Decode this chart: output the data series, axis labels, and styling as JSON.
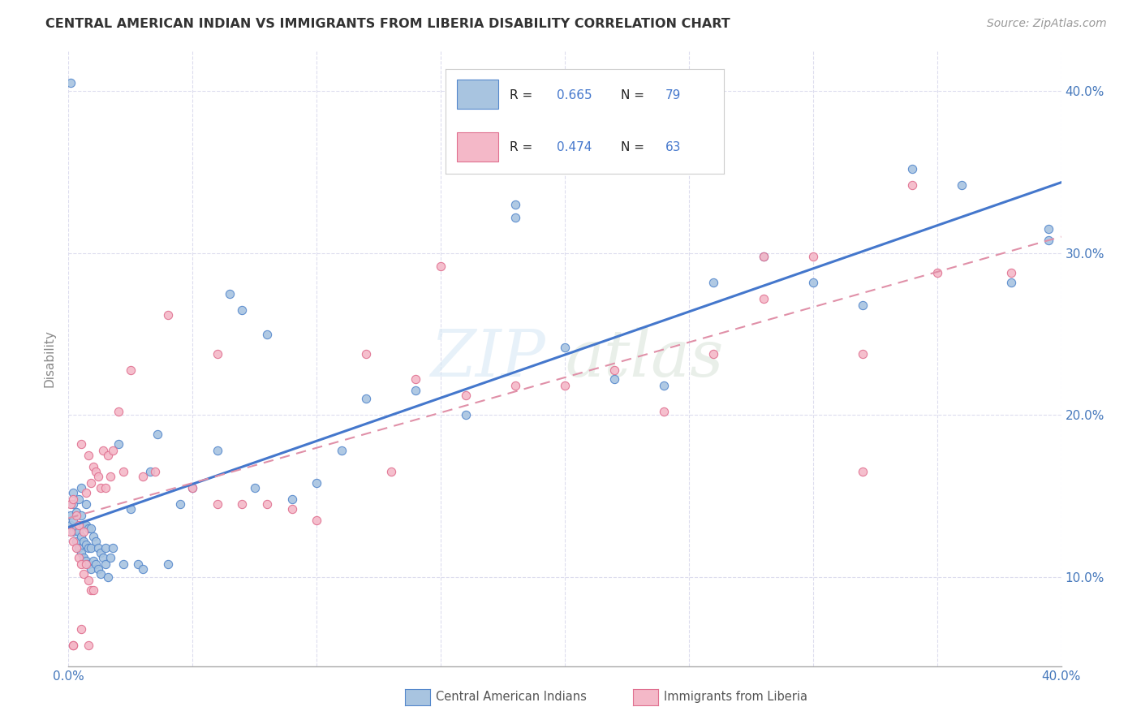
{
  "title": "CENTRAL AMERICAN INDIAN VS IMMIGRANTS FROM LIBERIA DISABILITY CORRELATION CHART",
  "source": "Source: ZipAtlas.com",
  "ylabel": "Disability",
  "watermark_zip": "ZIP",
  "watermark_atlas": "atlas",
  "blue_R": 0.665,
  "blue_N": 79,
  "pink_R": 0.474,
  "pink_N": 63,
  "blue_color": "#A8C4E0",
  "pink_color": "#F4B8C8",
  "blue_edge_color": "#5588CC",
  "pink_edge_color": "#E07090",
  "blue_line_color": "#4477CC",
  "pink_line_color": "#E090A8",
  "background_color": "#FFFFFF",
  "grid_color": "#DDDDEE",
  "blue_scatter_x": [
    0.001,
    0.001,
    0.002,
    0.002,
    0.002,
    0.003,
    0.003,
    0.003,
    0.004,
    0.004,
    0.004,
    0.005,
    0.005,
    0.005,
    0.005,
    0.006,
    0.006,
    0.006,
    0.007,
    0.007,
    0.007,
    0.007,
    0.008,
    0.008,
    0.008,
    0.009,
    0.009,
    0.009,
    0.01,
    0.01,
    0.011,
    0.011,
    0.012,
    0.012,
    0.013,
    0.013,
    0.014,
    0.015,
    0.015,
    0.016,
    0.017,
    0.018,
    0.02,
    0.022,
    0.025,
    0.028,
    0.03,
    0.033,
    0.036,
    0.04,
    0.045,
    0.05,
    0.06,
    0.065,
    0.07,
    0.075,
    0.08,
    0.09,
    0.1,
    0.11,
    0.12,
    0.14,
    0.16,
    0.18,
    0.2,
    0.22,
    0.24,
    0.26,
    0.28,
    0.3,
    0.32,
    0.34,
    0.36,
    0.38,
    0.395,
    0.001,
    0.002,
    0.18,
    0.395
  ],
  "blue_scatter_y": [
    0.132,
    0.138,
    0.128,
    0.135,
    0.145,
    0.122,
    0.13,
    0.14,
    0.118,
    0.128,
    0.148,
    0.115,
    0.125,
    0.138,
    0.155,
    0.112,
    0.122,
    0.132,
    0.11,
    0.12,
    0.132,
    0.145,
    0.108,
    0.118,
    0.13,
    0.105,
    0.118,
    0.13,
    0.11,
    0.125,
    0.108,
    0.122,
    0.105,
    0.118,
    0.102,
    0.115,
    0.112,
    0.108,
    0.118,
    0.1,
    0.112,
    0.118,
    0.182,
    0.108,
    0.142,
    0.108,
    0.105,
    0.165,
    0.188,
    0.108,
    0.145,
    0.155,
    0.178,
    0.275,
    0.265,
    0.155,
    0.25,
    0.148,
    0.158,
    0.178,
    0.21,
    0.215,
    0.2,
    0.33,
    0.242,
    0.222,
    0.218,
    0.282,
    0.298,
    0.282,
    0.268,
    0.352,
    0.342,
    0.282,
    0.308,
    0.405,
    0.152,
    0.322,
    0.315
  ],
  "pink_scatter_x": [
    0.001,
    0.001,
    0.002,
    0.002,
    0.003,
    0.003,
    0.004,
    0.004,
    0.005,
    0.005,
    0.006,
    0.006,
    0.007,
    0.007,
    0.008,
    0.008,
    0.009,
    0.009,
    0.01,
    0.01,
    0.011,
    0.012,
    0.013,
    0.014,
    0.015,
    0.016,
    0.017,
    0.018,
    0.02,
    0.022,
    0.025,
    0.03,
    0.035,
    0.04,
    0.05,
    0.06,
    0.07,
    0.08,
    0.09,
    0.1,
    0.12,
    0.13,
    0.14,
    0.15,
    0.16,
    0.18,
    0.2,
    0.22,
    0.24,
    0.26,
    0.28,
    0.3,
    0.32,
    0.34,
    0.35,
    0.38,
    0.002,
    0.005,
    0.008,
    0.06,
    0.28,
    0.32,
    0.002
  ],
  "pink_scatter_y": [
    0.128,
    0.145,
    0.122,
    0.148,
    0.118,
    0.138,
    0.112,
    0.132,
    0.108,
    0.182,
    0.102,
    0.128,
    0.108,
    0.152,
    0.098,
    0.175,
    0.092,
    0.158,
    0.092,
    0.168,
    0.165,
    0.162,
    0.155,
    0.178,
    0.155,
    0.175,
    0.162,
    0.178,
    0.202,
    0.165,
    0.228,
    0.162,
    0.165,
    0.262,
    0.155,
    0.145,
    0.145,
    0.145,
    0.142,
    0.135,
    0.238,
    0.165,
    0.222,
    0.292,
    0.212,
    0.218,
    0.218,
    0.228,
    0.202,
    0.238,
    0.298,
    0.298,
    0.238,
    0.342,
    0.288,
    0.288,
    0.058,
    0.068,
    0.058,
    0.238,
    0.272,
    0.165,
    0.058
  ],
  "ytick_vals": [
    0.1,
    0.2,
    0.3,
    0.4
  ],
  "ytick_labels": [
    "10.0%",
    "20.0%",
    "30.0%",
    "40.0%"
  ],
  "xlim": [
    0.0,
    0.4
  ],
  "ylim": [
    0.045,
    0.425
  ],
  "tick_color": "#4477BB"
}
